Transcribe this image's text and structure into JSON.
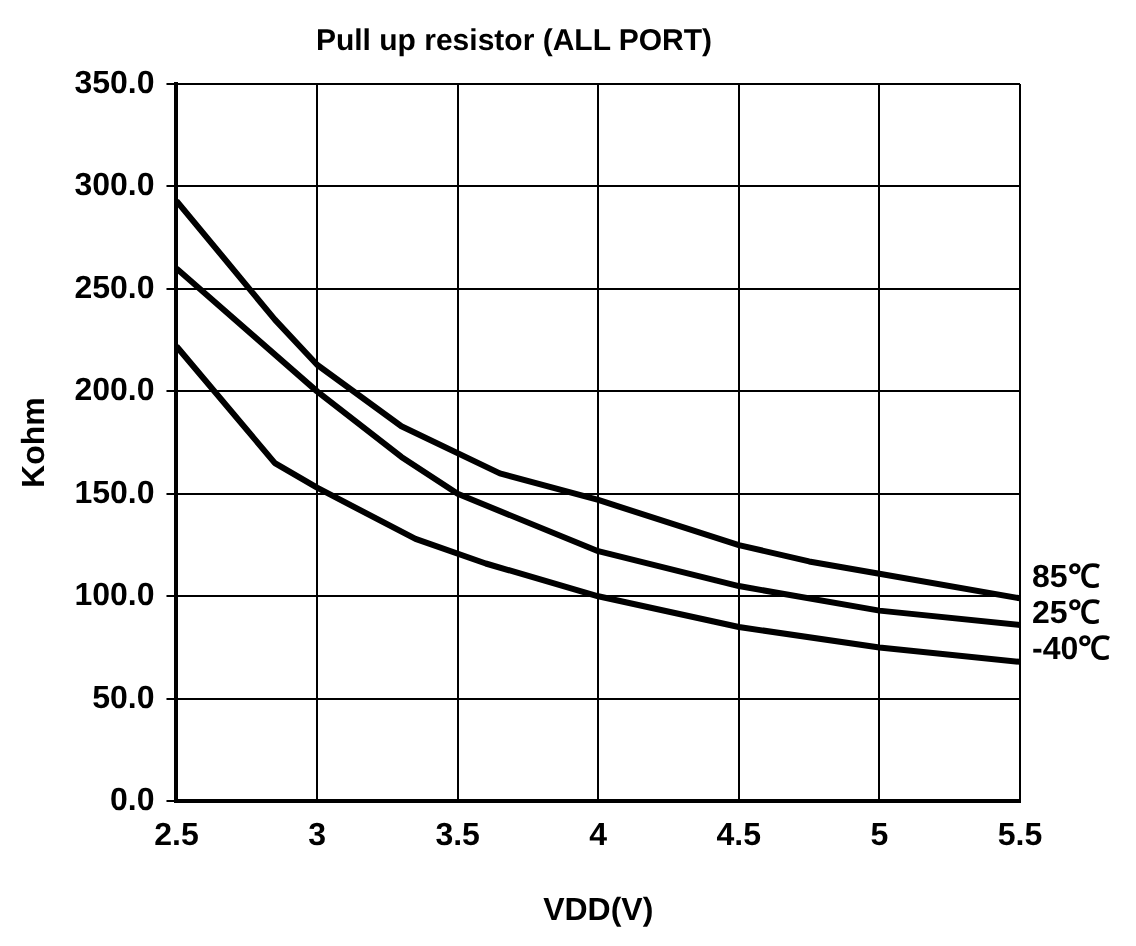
{
  "chart_data": {
    "type": "line",
    "title": "Pull up resistor (ALL PORT)",
    "xlabel": "VDD(V)",
    "ylabel": "Kohm",
    "xlim": [
      2.5,
      5.5
    ],
    "xticks": [
      2.5,
      3,
      3.5,
      4,
      4.5,
      5,
      5.5
    ],
    "ylim": [
      0,
      350
    ],
    "yticks": [
      {
        "value": 0,
        "label": "0.0"
      },
      {
        "value": 50,
        "label": "50.0"
      },
      {
        "value": 100,
        "label": "100.0"
      },
      {
        "value": 150,
        "label": "150.0"
      },
      {
        "value": 200,
        "label": "200.0"
      },
      {
        "value": 250,
        "label": "250.0"
      },
      {
        "value": 300,
        "label": "300.0"
      },
      {
        "value": 350,
        "label": "350.0"
      }
    ],
    "grid": true,
    "legend": false,
    "marker": "none",
    "line_style": "solid",
    "series": [
      {
        "name": "85℃",
        "color": "#000000",
        "x": [
          2.5,
          2.85,
          3,
          3.3,
          3.65,
          4,
          4.5,
          4.75,
          5,
          5.5
        ],
        "values": [
          293,
          235,
          213,
          183,
          160,
          147,
          125,
          117,
          111,
          99
        ]
      },
      {
        "name": "25℃",
        "color": "#000000",
        "x": [
          2.5,
          3,
          3.3,
          3.5,
          4,
          4.5,
          5,
          5.5
        ],
        "values": [
          260,
          200,
          168,
          150,
          122,
          105,
          93,
          86
        ]
      },
      {
        "name": "-40℃",
        "color": "#000000",
        "x": [
          2.5,
          2.85,
          3,
          3.35,
          3.6,
          4,
          4.5,
          5,
          5.5
        ],
        "values": [
          222,
          165,
          153,
          128,
          116,
          100,
          85,
          75,
          68
        ]
      }
    ]
  }
}
